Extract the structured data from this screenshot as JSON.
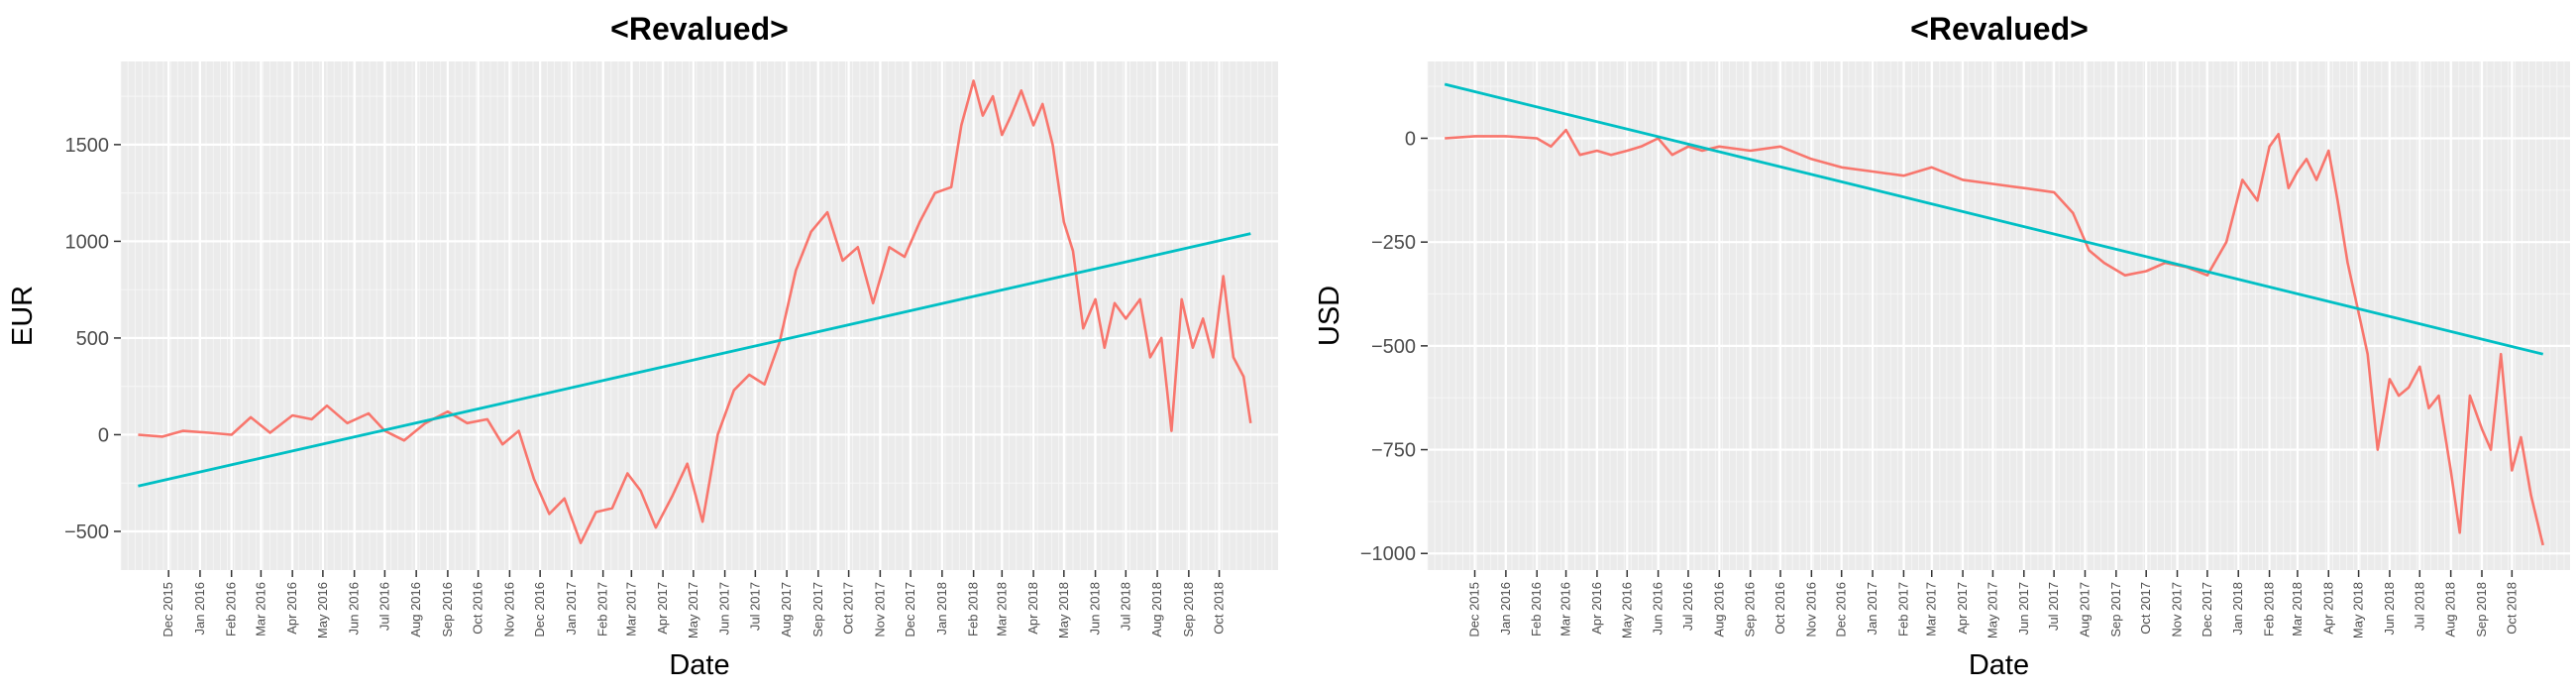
{
  "chart_data": [
    {
      "type": "line",
      "title": "<Revalued>",
      "xlabel": "Date",
      "ylabel": "EUR",
      "ylim": [
        -700,
        1930
      ],
      "yticks": [
        -500,
        0,
        500,
        1000,
        1500
      ],
      "ytick_labels": [
        "−500",
        "0",
        "500",
        "1000",
        "1500"
      ],
      "xlim": [
        "2015-10-15",
        "2018-11-28"
      ],
      "xtick_dates": [
        "2015-12-01",
        "2016-01-01",
        "2016-02-01",
        "2016-03-01",
        "2016-04-01",
        "2016-05-01",
        "2016-06-01",
        "2016-07-01",
        "2016-08-01",
        "2016-09-01",
        "2016-10-01",
        "2016-11-01",
        "2016-12-01",
        "2017-01-01",
        "2017-02-01",
        "2017-03-01",
        "2017-04-01",
        "2017-05-01",
        "2017-06-01",
        "2017-07-01",
        "2017-08-01",
        "2017-09-01",
        "2017-10-01",
        "2017-11-01",
        "2017-12-01",
        "2018-01-01",
        "2018-02-01",
        "2018-03-01",
        "2018-04-01",
        "2018-05-01",
        "2018-06-01",
        "2018-07-01",
        "2018-08-01",
        "2018-09-01",
        "2018-10-01"
      ],
      "xtick_labels": [
        "Dec 2015",
        "Jan 2016",
        "Feb 2016",
        "Mar 2016",
        "Apr 2016",
        "May 2016",
        "Jun 2016",
        "Jul 2016",
        "Aug 2016",
        "Sep 2016",
        "Oct 2016",
        "Nov 2016",
        "Dec 2016",
        "Jan 2017",
        "Feb 2017",
        "Mar 2017",
        "Apr 2017",
        "May 2017",
        "Jun 2017",
        "Jul 2017",
        "Aug 2017",
        "Sep 2017",
        "Oct 2017",
        "Nov 2017",
        "Dec 2017",
        "Jan 2018",
        "Feb 2018",
        "Mar 2018",
        "Apr 2018",
        "May 2018",
        "Jun 2018",
        "Jul 2018",
        "Aug 2018",
        "Sep 2018",
        "Oct 2018"
      ],
      "grid": true,
      "series": [
        {
          "color": "#F8766D",
          "x": [
            "2015-11-01",
            "2015-11-25",
            "2015-12-15",
            "2016-01-10",
            "2016-02-01",
            "2016-02-20",
            "2016-03-10",
            "2016-04-01",
            "2016-04-20",
            "2016-05-05",
            "2016-05-25",
            "2016-06-15",
            "2016-07-01",
            "2016-07-20",
            "2016-08-10",
            "2016-09-01",
            "2016-09-20",
            "2016-10-10",
            "2016-10-25",
            "2016-11-10",
            "2016-11-25",
            "2016-12-10",
            "2016-12-25",
            "2017-01-10",
            "2017-01-25",
            "2017-02-10",
            "2017-02-25",
            "2017-03-10",
            "2017-03-25",
            "2017-04-10",
            "2017-04-25",
            "2017-05-10",
            "2017-05-25",
            "2017-06-10",
            "2017-06-25",
            "2017-07-10",
            "2017-07-25",
            "2017-08-10",
            "2017-08-25",
            "2017-09-10",
            "2017-09-25",
            "2017-10-10",
            "2017-10-25",
            "2017-11-10",
            "2017-11-25",
            "2017-12-10",
            "2017-12-25",
            "2018-01-10",
            "2018-01-20",
            "2018-02-01",
            "2018-02-10",
            "2018-02-20",
            "2018-03-01",
            "2018-03-10",
            "2018-03-20",
            "2018-04-01",
            "2018-04-10",
            "2018-04-20",
            "2018-05-01",
            "2018-05-10",
            "2018-05-20",
            "2018-06-01",
            "2018-06-10",
            "2018-06-20",
            "2018-07-01",
            "2018-07-15",
            "2018-07-25",
            "2018-08-05",
            "2018-08-15",
            "2018-08-25",
            "2018-09-05",
            "2018-09-15",
            "2018-09-25",
            "2018-10-05",
            "2018-10-15",
            "2018-10-25",
            "2018-11-01"
          ],
          "values": [
            0,
            -10,
            20,
            10,
            0,
            90,
            10,
            100,
            80,
            150,
            60,
            110,
            20,
            -30,
            60,
            120,
            60,
            80,
            -50,
            20,
            -230,
            -410,
            -330,
            -560,
            -400,
            -380,
            -200,
            -290,
            -480,
            -320,
            -150,
            -450,
            0,
            230,
            310,
            260,
            480,
            850,
            1050,
            1150,
            900,
            970,
            680,
            970,
            920,
            1100,
            1250,
            1280,
            1600,
            1830,
            1650,
            1750,
            1550,
            1650,
            1780,
            1600,
            1710,
            1500,
            1100,
            950,
            550,
            700,
            450,
            680,
            600,
            700,
            400,
            500,
            20,
            700,
            450,
            600,
            400,
            820,
            400,
            300,
            60
          ]
        },
        {
          "color": "#00BFC4",
          "x": [
            "2015-11-01",
            "2018-11-01"
          ],
          "values": [
            -265,
            1040
          ]
        }
      ]
    },
    {
      "type": "line",
      "title": "<Revalued>",
      "xlabel": "Date",
      "ylabel": "USD",
      "ylim": [
        -1040,
        185
      ],
      "yticks": [
        -1000,
        -750,
        -500,
        -250,
        0
      ],
      "ytick_labels": [
        "−1000",
        "−750",
        "−500",
        "−250",
        "0"
      ],
      "xlim": [
        "2015-10-15",
        "2018-11-28"
      ],
      "xtick_dates": [
        "2015-12-01",
        "2016-01-01",
        "2016-02-01",
        "2016-03-01",
        "2016-04-01",
        "2016-05-01",
        "2016-06-01",
        "2016-07-01",
        "2016-08-01",
        "2016-09-01",
        "2016-10-01",
        "2016-11-01",
        "2016-12-01",
        "2017-01-01",
        "2017-02-01",
        "2017-03-01",
        "2017-04-01",
        "2017-05-01",
        "2017-06-01",
        "2017-07-01",
        "2017-08-01",
        "2017-09-01",
        "2017-10-01",
        "2017-11-01",
        "2017-12-01",
        "2018-01-01",
        "2018-02-01",
        "2018-03-01",
        "2018-04-01",
        "2018-05-01",
        "2018-06-01",
        "2018-07-01",
        "2018-08-01",
        "2018-09-01",
        "2018-10-01"
      ],
      "xtick_labels": [
        "Dec 2015",
        "Jan 2016",
        "Feb 2016",
        "Mar 2016",
        "Apr 2016",
        "May 2016",
        "Jun 2016",
        "Jul 2016",
        "Aug 2016",
        "Sep 2016",
        "Oct 2016",
        "Nov 2016",
        "Dec 2016",
        "Jan 2017",
        "Feb 2017",
        "Mar 2017",
        "Apr 2017",
        "May 2017",
        "Jun 2017",
        "Jul 2017",
        "Aug 2017",
        "Sep 2017",
        "Oct 2017",
        "Nov 2017",
        "Dec 2017",
        "Jan 2018",
        "Feb 2018",
        "Mar 2018",
        "Apr 2018",
        "May 2018",
        "Jun 2018",
        "Jul 2018",
        "Aug 2018",
        "Sep 2018",
        "Oct 2018"
      ],
      "grid": true,
      "series": [
        {
          "color": "#F8766D",
          "x": [
            "2015-11-01",
            "2015-12-01",
            "2016-01-01",
            "2016-02-01",
            "2016-02-15",
            "2016-03-01",
            "2016-03-15",
            "2016-04-01",
            "2016-04-15",
            "2016-05-01",
            "2016-05-15",
            "2016-06-01",
            "2016-06-15",
            "2016-07-01",
            "2016-07-15",
            "2016-08-01",
            "2016-09-01",
            "2016-10-01",
            "2016-11-01",
            "2016-12-01",
            "2017-01-01",
            "2017-02-01",
            "2017-03-01",
            "2017-04-01",
            "2017-05-01",
            "2017-06-01",
            "2017-07-01",
            "2017-07-20",
            "2017-08-05",
            "2017-08-20",
            "2017-09-10",
            "2017-10-01",
            "2017-10-20",
            "2017-11-10",
            "2017-12-01",
            "2017-12-20",
            "2018-01-05",
            "2018-01-20",
            "2018-02-01",
            "2018-02-10",
            "2018-02-20",
            "2018-03-01",
            "2018-03-10",
            "2018-03-20",
            "2018-04-01",
            "2018-04-10",
            "2018-04-20",
            "2018-05-01",
            "2018-05-10",
            "2018-05-20",
            "2018-06-01",
            "2018-06-10",
            "2018-06-20",
            "2018-07-01",
            "2018-07-10",
            "2018-07-20",
            "2018-08-01",
            "2018-08-10",
            "2018-08-20",
            "2018-09-01",
            "2018-09-10",
            "2018-09-20",
            "2018-10-01",
            "2018-10-10",
            "2018-10-20",
            "2018-11-01"
          ],
          "values": [
            0,
            5,
            5,
            0,
            -20,
            20,
            -40,
            -30,
            -40,
            -30,
            -20,
            0,
            -40,
            -20,
            -30,
            -20,
            -30,
            -20,
            -50,
            -70,
            -80,
            -90,
            -70,
            -100,
            -110,
            -120,
            -130,
            -180,
            -270,
            -300,
            -330,
            -320,
            -300,
            -310,
            -330,
            -250,
            -100,
            -150,
            -20,
            10,
            -120,
            -80,
            -50,
            -100,
            -30,
            -150,
            -300,
            -420,
            -520,
            -750,
            -580,
            -620,
            -600,
            -550,
            -650,
            -620,
            -800,
            -950,
            -620,
            -700,
            -750,
            -520,
            -800,
            -720,
            -860,
            -980
          ]
        },
        {
          "color": "#00BFC4",
          "x": [
            "2015-11-01",
            "2018-11-01"
          ],
          "values": [
            130,
            -520
          ]
        }
      ]
    }
  ]
}
